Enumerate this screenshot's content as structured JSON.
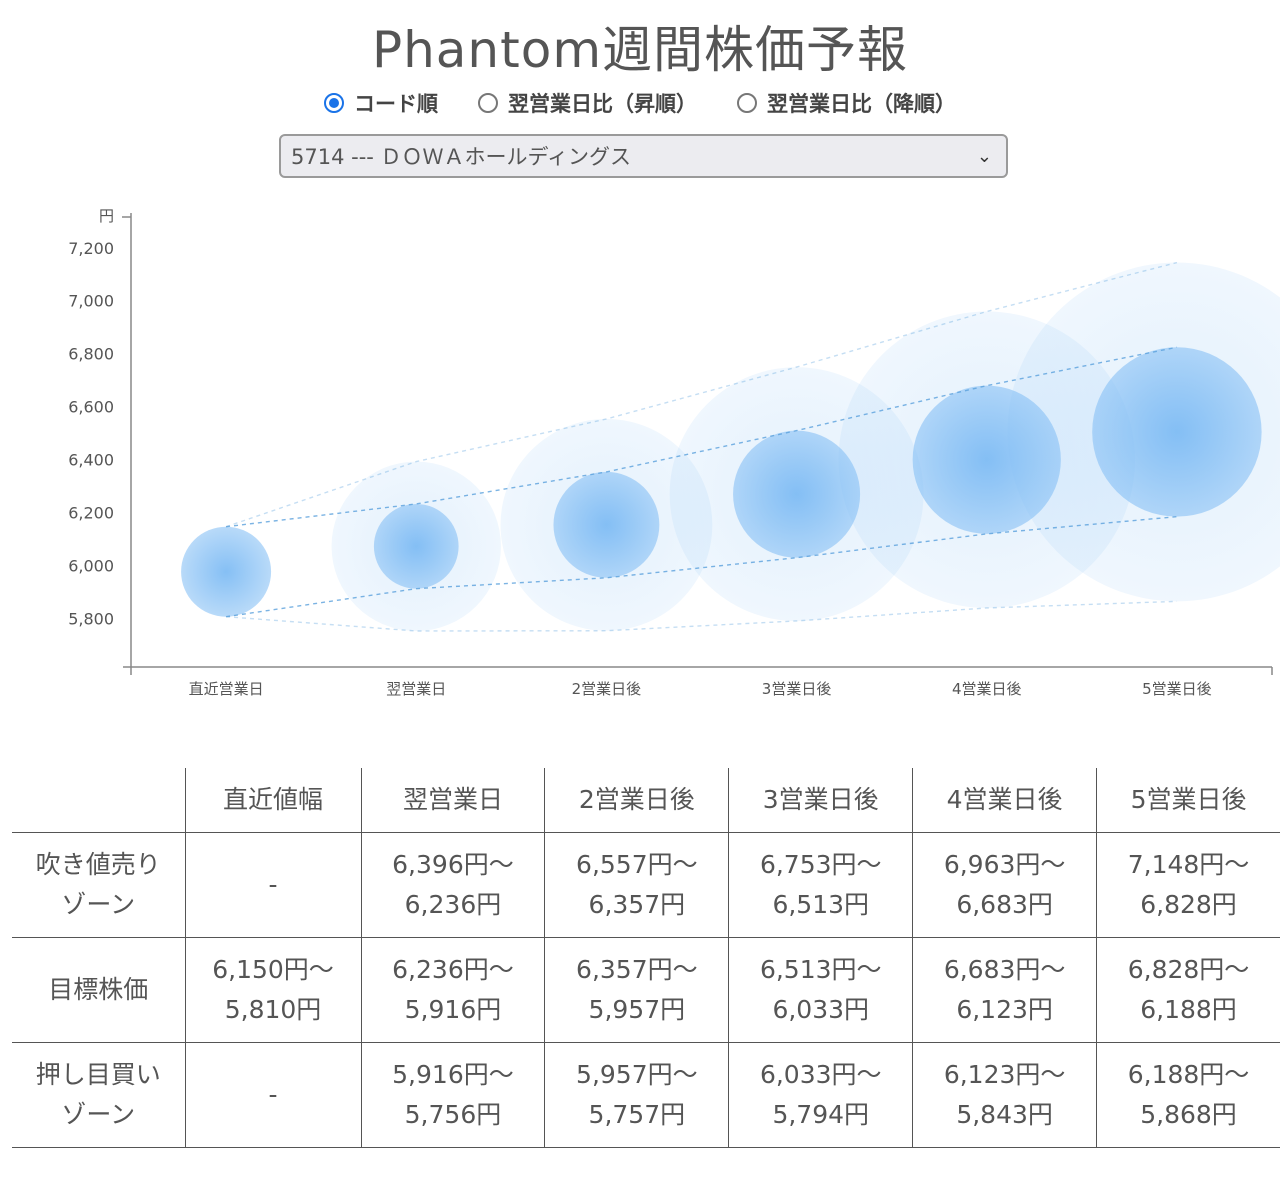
{
  "title": "Phantom週間株価予報",
  "sort_options": [
    {
      "label": "コード順",
      "checked": true
    },
    {
      "label": "翌営業日比（昇順）",
      "checked": false
    },
    {
      "label": "翌営業日比（降順）",
      "checked": false
    }
  ],
  "stock_select": {
    "value": "5714 --- ＤＯＷＡホールディングス"
  },
  "chart_data": {
    "type": "scatter",
    "title": "",
    "y_unit": "円",
    "xlabel": "",
    "ylabel": "円",
    "categories": [
      "直近営業日",
      "翌営業日",
      "2営業日後",
      "3営業日後",
      "4営業日後",
      "5営業日後"
    ],
    "y_ticks": [
      5800,
      6000,
      6200,
      6400,
      6600,
      6800,
      7000,
      7200
    ],
    "ylim": [
      5620,
      7320
    ],
    "grid": false,
    "center_values": [
      5980,
      6076,
      6157,
      6273,
      6403,
      6508
    ],
    "target_upper": [
      6150,
      6236,
      6357,
      6513,
      6683,
      6828
    ],
    "target_lower": [
      5810,
      5916,
      5957,
      6033,
      6123,
      6188
    ],
    "outer_upper": [
      6150,
      6396,
      6557,
      6753,
      6963,
      7148
    ],
    "outer_lower": [
      5810,
      5756,
      5757,
      5794,
      5843,
      5868
    ],
    "colors": {
      "bubble": "#7fbcf4",
      "line": "#5aa0dc"
    }
  },
  "table": {
    "headers": [
      "",
      "直近値幅",
      "翌営業日",
      "2営業日後",
      "3営業日後",
      "4営業日後",
      "5営業日後"
    ],
    "rows": [
      {
        "label": [
          "吹き値売り",
          "ゾーン"
        ],
        "cells": [
          [
            "-"
          ],
          [
            "6,396円〜",
            "6,236円"
          ],
          [
            "6,557円〜",
            "6,357円"
          ],
          [
            "6,753円〜",
            "6,513円"
          ],
          [
            "6,963円〜",
            "6,683円"
          ],
          [
            "7,148円〜",
            "6,828円"
          ]
        ]
      },
      {
        "label": [
          "目標株価"
        ],
        "cells": [
          [
            "6,150円〜",
            "5,810円"
          ],
          [
            "6,236円〜",
            "5,916円"
          ],
          [
            "6,357円〜",
            "5,957円"
          ],
          [
            "6,513円〜",
            "6,033円"
          ],
          [
            "6,683円〜",
            "6,123円"
          ],
          [
            "6,828円〜",
            "6,188円"
          ]
        ]
      },
      {
        "label": [
          "押し目買い",
          "ゾーン"
        ],
        "cells": [
          [
            "-"
          ],
          [
            "5,916円〜",
            "5,756円"
          ],
          [
            "5,957円〜",
            "5,757円"
          ],
          [
            "6,033円〜",
            "5,794円"
          ],
          [
            "6,123円〜",
            "5,843円"
          ],
          [
            "6,188円〜",
            "5,868円"
          ]
        ]
      }
    ]
  }
}
